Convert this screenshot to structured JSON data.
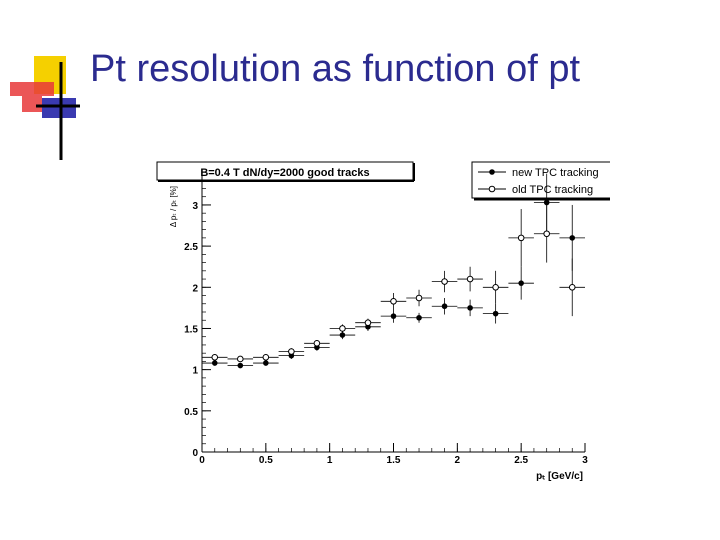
{
  "slide": {
    "title": "Pt resolution as function of pt"
  },
  "colors": {
    "title": "#2b2b8f",
    "deco_yellow": "#f5d000",
    "deco_red": "#e8383a",
    "deco_blue": "#3a3ab0",
    "deco_line": "#000000"
  },
  "chart_data": {
    "type": "scatter",
    "title": "B=0.4 T  dN/dy=2000  good tracks",
    "xlabel": "pₜ [GeV/c]",
    "ylabel": "Δ pₜ / pₜ [%]",
    "xlim": [
      0,
      3
    ],
    "ylim": [
      0,
      3.4
    ],
    "grid": false,
    "legend_placement": "top-right",
    "xticks": [
      0,
      0.5,
      1,
      1.5,
      2,
      2.5,
      3
    ],
    "xtick_labels": [
      "0",
      "0.5",
      "1",
      "1.5",
      "2",
      "2.5",
      "3"
    ],
    "yticks": [
      0,
      0.5,
      1,
      1.5,
      2,
      2.5,
      3
    ],
    "ytick_labels": [
      "0",
      "0.5",
      "1",
      "1.5",
      "2",
      "2.5",
      "3"
    ],
    "series": [
      {
        "name": "new TPC tracking",
        "marker": "filled",
        "x": [
          0.1,
          0.3,
          0.5,
          0.7,
          0.9,
          1.1,
          1.3,
          1.5,
          1.7,
          1.9,
          2.1,
          2.3,
          2.5,
          2.7,
          2.9
        ],
        "y": [
          1.08,
          1.05,
          1.08,
          1.17,
          1.27,
          1.42,
          1.52,
          1.65,
          1.63,
          1.77,
          1.75,
          1.68,
          2.05,
          3.03,
          2.6
        ],
        "xerr": [
          0.1,
          0.1,
          0.1,
          0.1,
          0.1,
          0.1,
          0.1,
          0.1,
          0.1,
          0.1,
          0.1,
          0.1,
          0.1,
          0.1,
          0.1
        ],
        "yerr": [
          0.03,
          0.03,
          0.03,
          0.04,
          0.04,
          0.05,
          0.05,
          0.08,
          0.06,
          0.1,
          0.1,
          0.12,
          0.2,
          0.35,
          0.4
        ]
      },
      {
        "name": "old TPC tracking",
        "marker": "open",
        "x": [
          0.1,
          0.3,
          0.5,
          0.7,
          0.9,
          1.1,
          1.3,
          1.5,
          1.7,
          1.9,
          2.1,
          2.3,
          2.5,
          2.7,
          2.9
        ],
        "y": [
          1.15,
          1.13,
          1.15,
          1.22,
          1.32,
          1.5,
          1.57,
          1.83,
          1.87,
          2.07,
          2.1,
          2.0,
          2.6,
          2.65,
          2.0
        ],
        "xerr": [
          0.1,
          0.1,
          0.1,
          0.1,
          0.1,
          0.1,
          0.1,
          0.1,
          0.1,
          0.1,
          0.1,
          0.1,
          0.1,
          0.1,
          0.1
        ],
        "yerr": [
          0.03,
          0.03,
          0.03,
          0.04,
          0.04,
          0.05,
          0.05,
          0.1,
          0.1,
          0.13,
          0.15,
          0.2,
          0.35,
          0.35,
          0.35
        ]
      }
    ]
  }
}
